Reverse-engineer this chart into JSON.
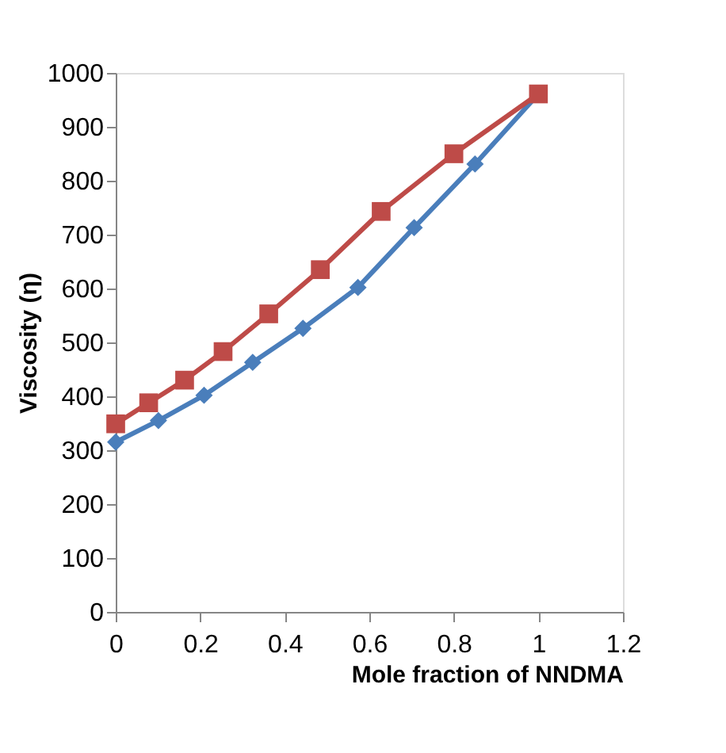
{
  "chart_data": {
    "type": "line",
    "xlabel": "Mole fraction of NNDMA",
    "ylabel": "Viscosity (η)",
    "xlim": [
      0,
      1.2
    ],
    "xticks": [
      0,
      0.2,
      0.4,
      0.6,
      0.8,
      1,
      1.2
    ],
    "ylim": [
      0,
      1000
    ],
    "yticks": [
      0,
      100,
      200,
      300,
      400,
      500,
      600,
      700,
      800,
      900,
      1000
    ],
    "grid": false,
    "line_style": "solid",
    "series": [
      {
        "color": "#4a7ebb",
        "marker": "diamond",
        "x": [
          0,
          0.101,
          0.209,
          0.324,
          0.443,
          0.573,
          0.706,
          0.85,
          1
        ],
        "values": [
          315,
          355,
          402,
          463,
          526,
          602,
          713,
          831,
          961
        ]
      },
      {
        "color": "#be4b48",
        "marker": "square",
        "x": [
          0,
          0.078,
          0.163,
          0.254,
          0.362,
          0.484,
          0.628,
          0.8,
          1
        ],
        "values": [
          349,
          388,
          430,
          483,
          553,
          635,
          743,
          850,
          961
        ]
      }
    ]
  }
}
